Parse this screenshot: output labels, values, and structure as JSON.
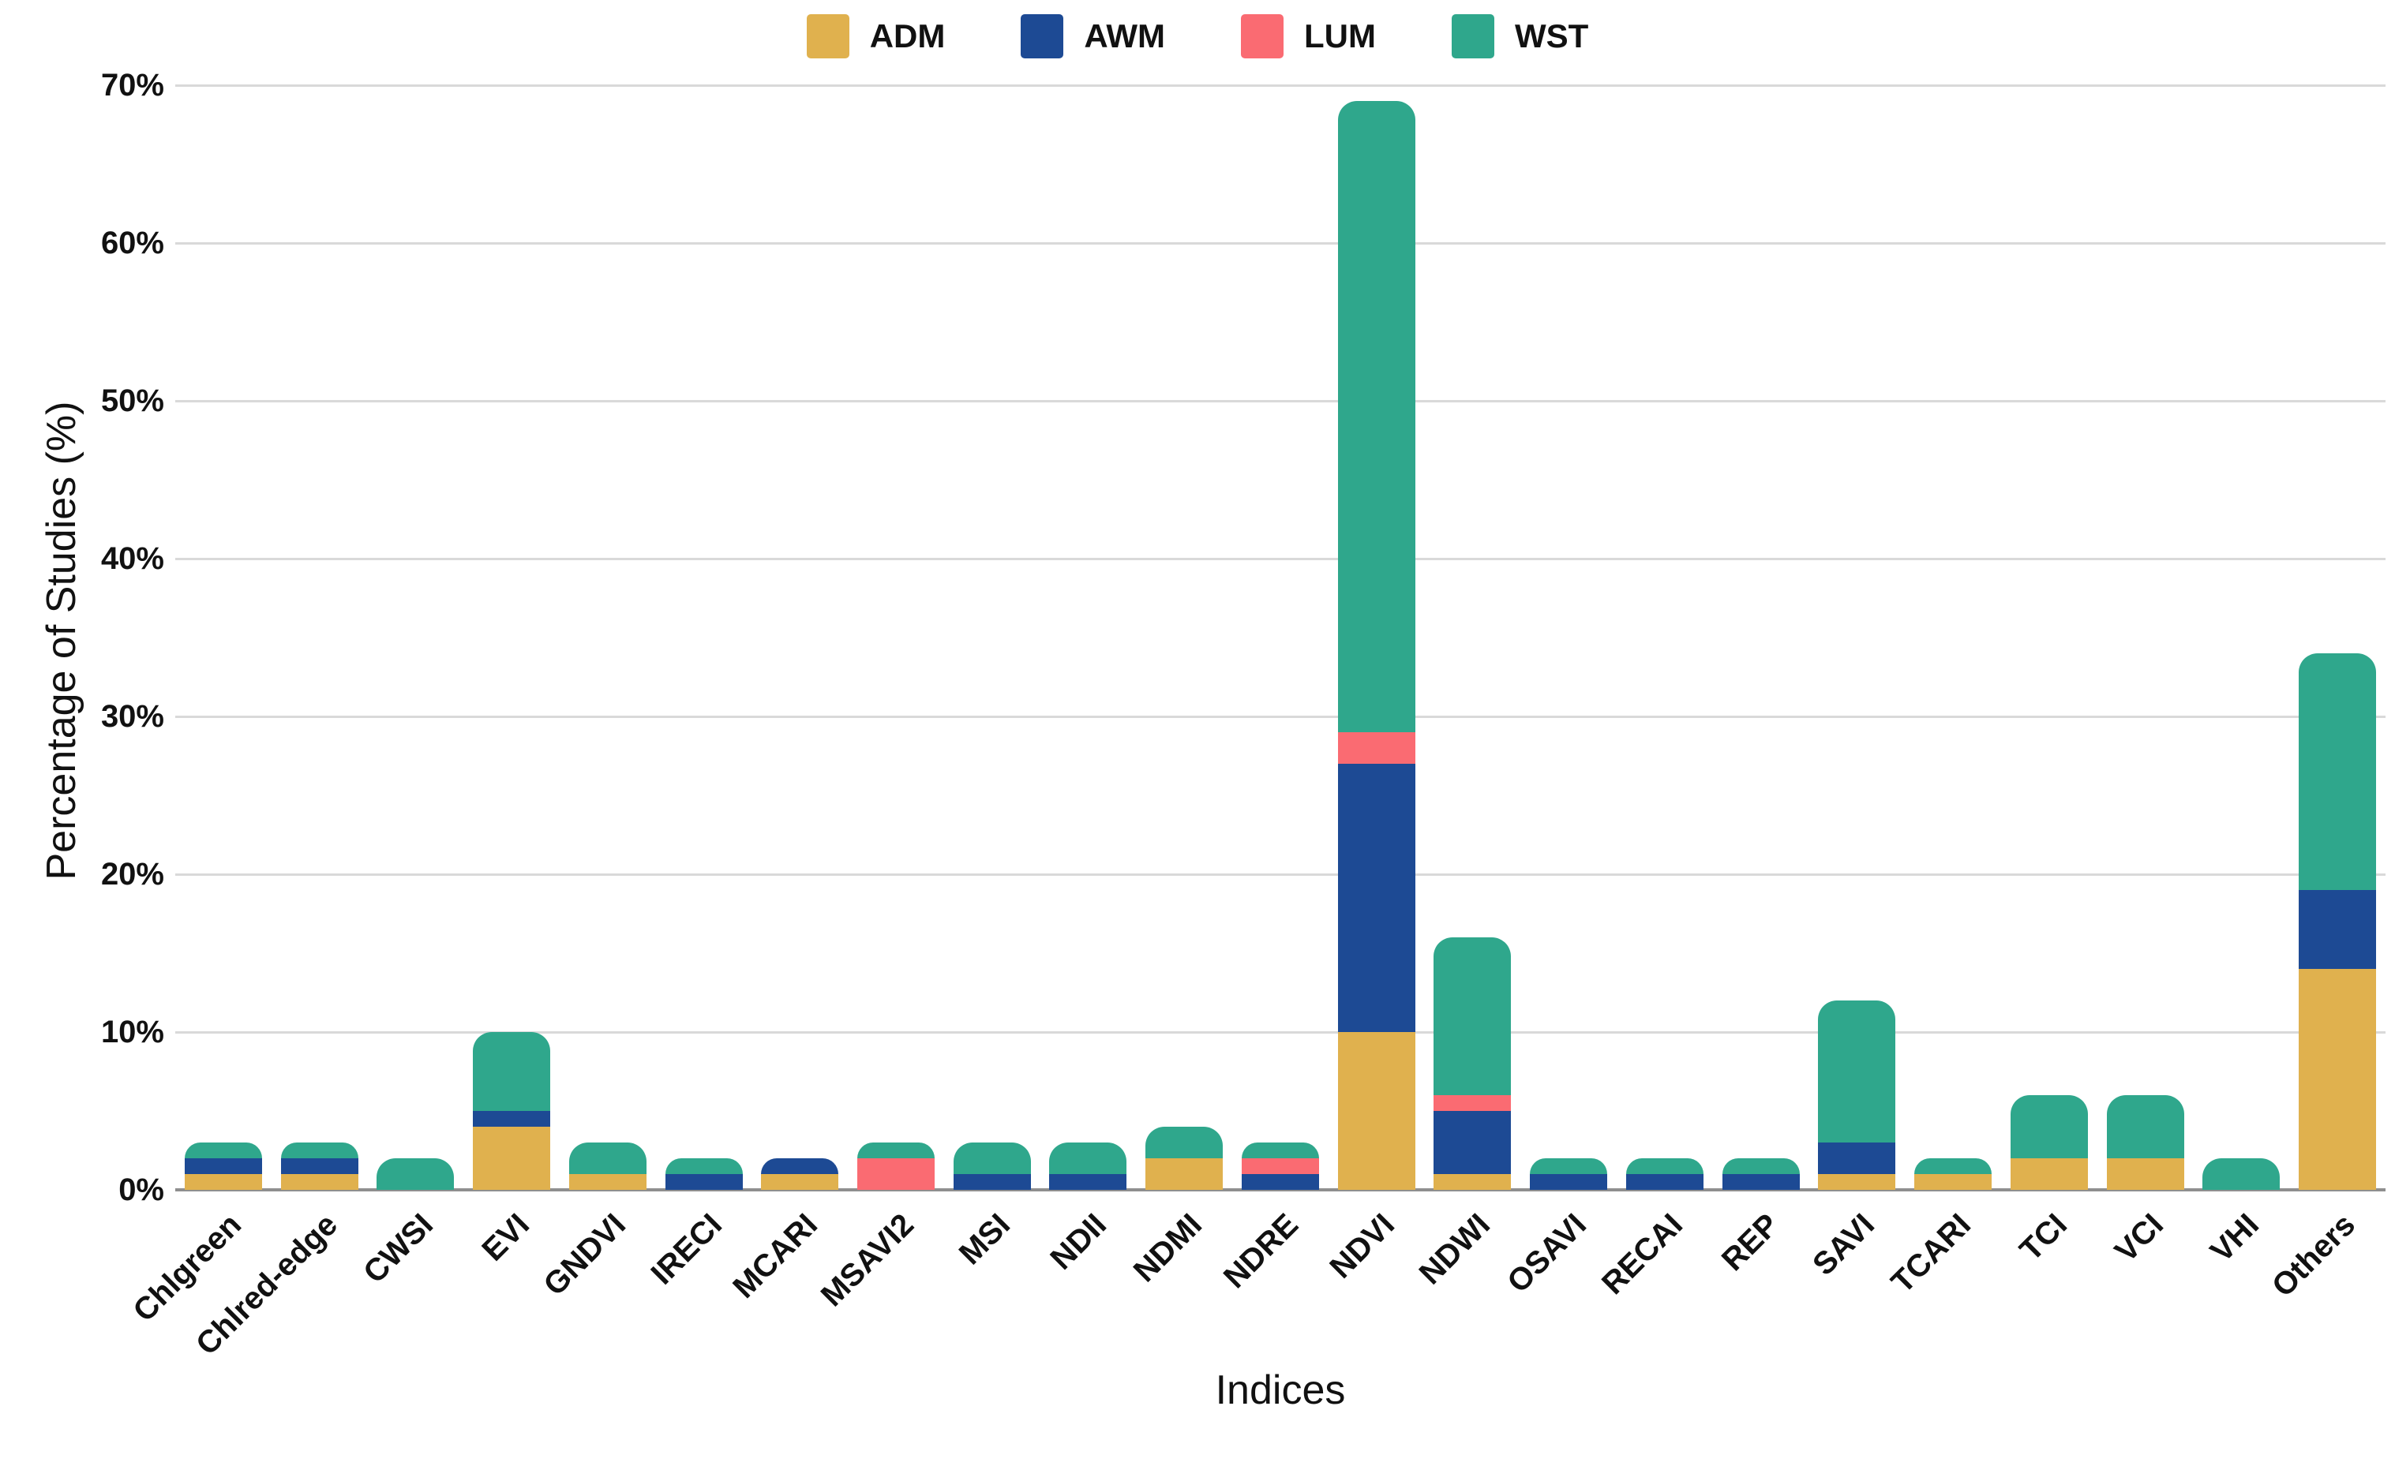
{
  "legend": {
    "items": [
      {
        "label": "ADM",
        "color": "#e0b14e"
      },
      {
        "label": "AWM",
        "color": "#1d4a94"
      },
      {
        "label": "LUM",
        "color": "#fa6b72"
      },
      {
        "label": "WST",
        "color": "#2fa78c"
      }
    ]
  },
  "axes": {
    "x_title": "Indices",
    "y_title": "Percentage of Studies (%)"
  },
  "chart_data": {
    "type": "bar",
    "stacked": true,
    "title": "",
    "xlabel": "Indices",
    "ylabel": "Percentage of Studies (%)",
    "ylim": [
      0,
      70
    ],
    "y_ticks": [
      "0%",
      "10%",
      "20%",
      "30%",
      "40%",
      "50%",
      "60%",
      "70%"
    ],
    "grid": true,
    "legend_position": "top-center",
    "categories": [
      "Chlgreen",
      "Chlred-edge",
      "CWSI",
      "EVI",
      "GNDVI",
      "IRECI",
      "MCARI",
      "MSAVI2",
      "MSI",
      "NDII",
      "NDMI",
      "NDRE",
      "NDVI",
      "NDWI",
      "OSAVI",
      "RECAI",
      "REP",
      "SAVI",
      "TCARI",
      "TCI",
      "VCI",
      "VHI",
      "Others"
    ],
    "series": [
      {
        "name": "ADM",
        "color": "#e0b14e",
        "values": [
          1,
          1,
          0,
          4,
          1,
          0,
          1,
          0,
          0,
          0,
          2,
          0,
          10,
          1,
          0,
          0,
          0,
          1,
          1,
          2,
          2,
          0,
          14
        ]
      },
      {
        "name": "AWM",
        "color": "#1d4a94",
        "values": [
          1,
          1,
          0,
          1,
          0,
          1,
          1,
          0,
          1,
          1,
          0,
          1,
          17,
          4,
          1,
          1,
          1,
          2,
          0,
          0,
          0,
          0,
          5
        ]
      },
      {
        "name": "LUM",
        "color": "#fa6b72",
        "values": [
          0,
          0,
          0,
          0,
          0,
          0,
          0,
          2,
          0,
          0,
          0,
          1,
          2,
          1,
          0,
          0,
          0,
          0,
          0,
          0,
          0,
          0,
          0
        ]
      },
      {
        "name": "WST",
        "color": "#2fa78c",
        "values": [
          1,
          1,
          2,
          5,
          2,
          1,
          0,
          1,
          2,
          2,
          2,
          1,
          40,
          10,
          1,
          1,
          1,
          9,
          1,
          4,
          4,
          2,
          15
        ]
      }
    ],
    "totals": [
      3,
      3,
      2,
      10,
      3,
      2,
      2,
      3,
      3,
      3,
      4,
      3,
      69,
      16,
      2,
      2,
      2,
      12,
      2,
      6,
      6,
      2,
      34
    ]
  }
}
